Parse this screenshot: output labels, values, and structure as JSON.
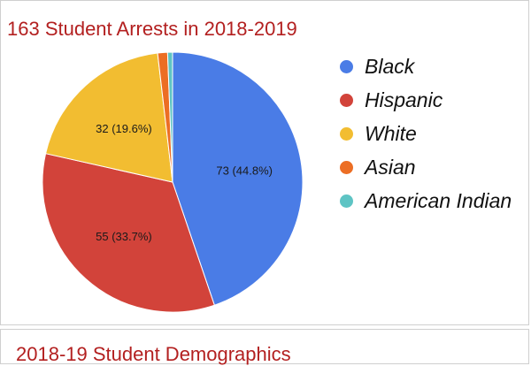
{
  "chart_data": {
    "type": "pie",
    "title": "163 Student Arrests in 2018-2019",
    "slices": [
      {
        "label": "Black",
        "value": 73,
        "data_label": "73 (44.8%)",
        "color": "#4a7ce6"
      },
      {
        "label": "Hispanic",
        "value": 55,
        "data_label": "55 (33.7%)",
        "color": "#d2433a"
      },
      {
        "label": "White",
        "value": 32,
        "data_label": "32 (19.6%)",
        "color": "#f2bd31"
      },
      {
        "label": "Asian",
        "value": 2,
        "data_label": "",
        "color": "#ec6e24"
      },
      {
        "label": "American Indian",
        "value": 1,
        "data_label": "",
        "color": "#5ec4c4"
      }
    ],
    "legend_position": "right"
  },
  "next_chart": {
    "title": "2018-19 Student Demographics"
  }
}
